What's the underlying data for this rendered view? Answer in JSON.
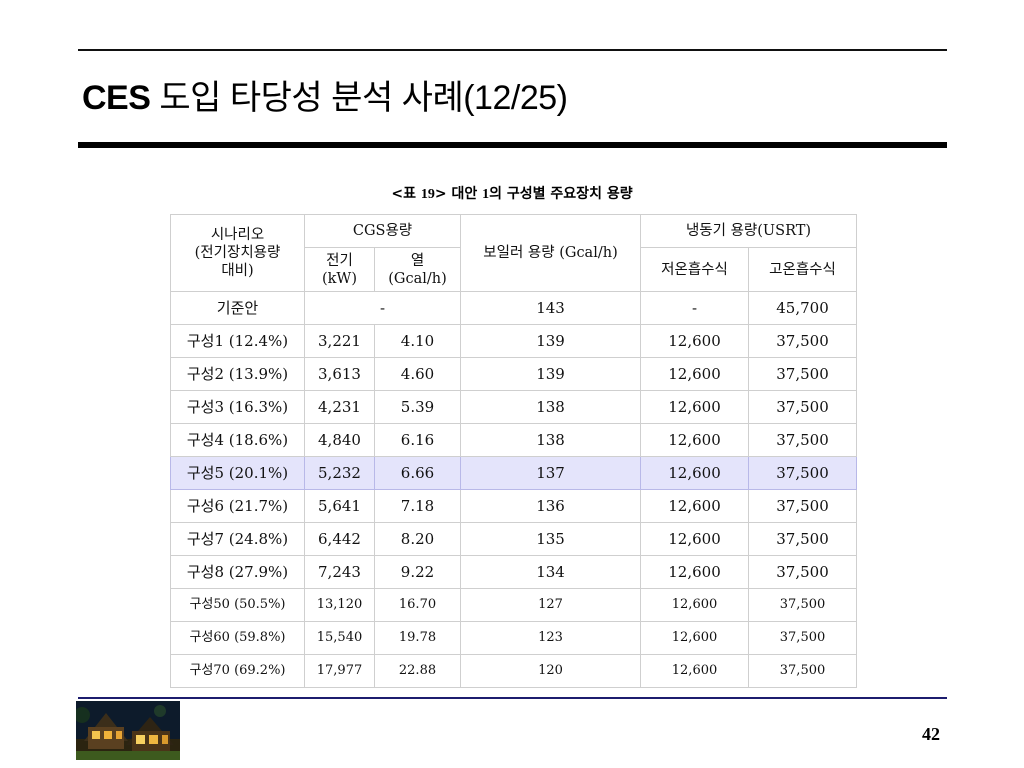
{
  "slide": {
    "title_bold": "CES",
    "title_rest": " 도입 타당성 분석 사례",
    "title_suffix": "(12/25)",
    "page_number": "42"
  },
  "caption": {
    "prefix": "<표 ",
    "table_no": "19",
    "mid": "> 대안 ",
    "alt_no": "1",
    "suffix": "의 구성별 주요장치 용량"
  },
  "table": {
    "header": {
      "scenario_line1": "시나리오",
      "scenario_line2": "(전기장치용량",
      "scenario_line3": "대비)",
      "cgs": "CGS용량",
      "cgs_elec_line1": "전기",
      "cgs_elec_line2": "(kW)",
      "cgs_heat_line1": "열",
      "cgs_heat_line2": "(Gcal/h)",
      "boiler": "보일러 용량 (Gcal/h)",
      "chiller": "냉동기 용량(USRT)",
      "chiller_low": "저온흡수식",
      "chiller_high": "고온흡수식"
    },
    "baseline": {
      "label": "기준안",
      "cgs": "-",
      "boiler": "143",
      "low": "-",
      "high": "45,700"
    },
    "rows": [
      {
        "scenario": "구성1 (12.4%)",
        "elec": "3,221",
        "heat": "4.10",
        "boiler": "139",
        "low": "12,600",
        "high": "37,500"
      },
      {
        "scenario": "구성2 (13.9%)",
        "elec": "3,613",
        "heat": "4.60",
        "boiler": "139",
        "low": "12,600",
        "high": "37,500"
      },
      {
        "scenario": "구성3 (16.3%)",
        "elec": "4,231",
        "heat": "5.39",
        "boiler": "138",
        "low": "12,600",
        "high": "37,500"
      },
      {
        "scenario": "구성4 (18.6%)",
        "elec": "4,840",
        "heat": "6.16",
        "boiler": "138",
        "low": "12,600",
        "high": "37,500"
      },
      {
        "scenario": "구성5 (20.1%)",
        "elec": "5,232",
        "heat": "6.66",
        "boiler": "137",
        "low": "12,600",
        "high": "37,500"
      },
      {
        "scenario": "구성6 (21.7%)",
        "elec": "5,641",
        "heat": "7.18",
        "boiler": "136",
        "low": "12,600",
        "high": "37,500"
      },
      {
        "scenario": "구성7 (24.8%)",
        "elec": "6,442",
        "heat": "8.20",
        "boiler": "135",
        "low": "12,600",
        "high": "37,500"
      },
      {
        "scenario": "구성8 (27.9%)",
        "elec": "7,243",
        "heat": "9.22",
        "boiler": "134",
        "low": "12,600",
        "high": "37,500"
      },
      {
        "scenario": "구성50 (50.5%)",
        "elec": "13,120",
        "heat": "16.70",
        "boiler": "127",
        "low": "12,600",
        "high": "37,500"
      },
      {
        "scenario": "구성60 (59.8%)",
        "elec": "15,540",
        "heat": "19.78",
        "boiler": "123",
        "low": "12,600",
        "high": "37,500"
      },
      {
        "scenario": "구성70 (69.2%)",
        "elec": "17,977",
        "heat": "22.88",
        "boiler": "120",
        "low": "12,600",
        "high": "37,500"
      }
    ]
  },
  "colors": {
    "highlight_row": "#e4e4fb",
    "bottom_rule": "#1c1c6e"
  }
}
